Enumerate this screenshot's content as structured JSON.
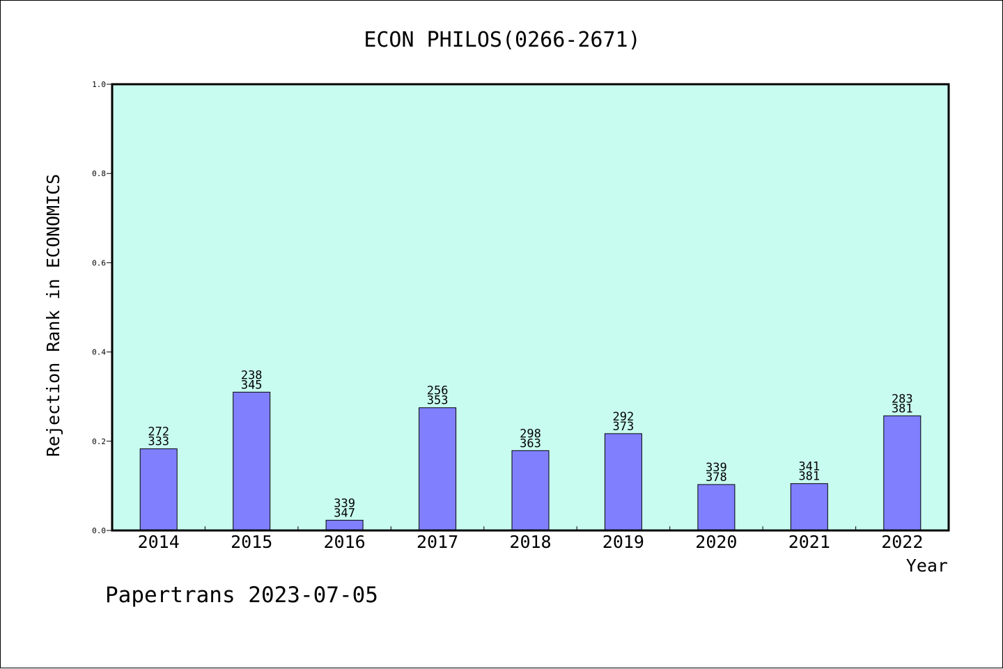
{
  "chart_data": {
    "type": "bar",
    "title": "ECON PHILOS(0266-2671)",
    "xlabel": "Year",
    "ylabel": "Rejection Rank in ECONOMICS",
    "categories": [
      "2014",
      "2015",
      "2016",
      "2017",
      "2018",
      "2019",
      "2020",
      "2021",
      "2022"
    ],
    "values": [
      0.183,
      0.31,
      0.023,
      0.275,
      0.179,
      0.217,
      0.103,
      0.105,
      0.257
    ],
    "label_top": [
      "272",
      "238",
      "339",
      "256",
      "298",
      "292",
      "339",
      "341",
      "283"
    ],
    "label_bottom": [
      "333",
      "345",
      "347",
      "353",
      "363",
      "373",
      "378",
      "381",
      "381"
    ],
    "ylim": [
      0.0,
      1.0
    ],
    "yticks": [
      "0.0",
      "0.2",
      "0.4",
      "0.6",
      "0.8",
      "1.0"
    ],
    "grid": false,
    "colors": {
      "plot_bg": "#c8fcf0",
      "bar": "#8080ff",
      "axis": "#000000"
    }
  },
  "footer": {
    "watermark": "Papertrans 2023-07-05"
  }
}
